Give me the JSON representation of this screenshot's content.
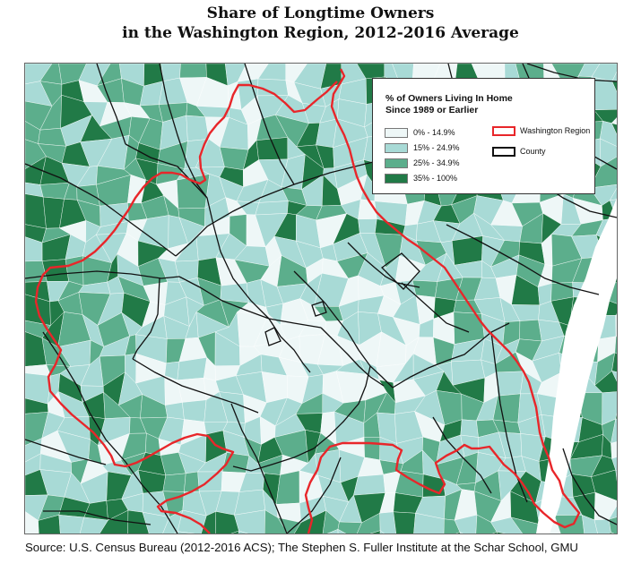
{
  "title": {
    "line1": "Share of Longtime Owners",
    "line2": "in the Washington Region, 2012-2016 Average"
  },
  "legend": {
    "title_line1": "% of Owners Living In Home",
    "title_line2": "Since 1989 or Earlier",
    "classes": [
      {
        "label": "0% - 14.9%",
        "color": "#eef7f7"
      },
      {
        "label": "15% - 24.9%",
        "color": "#a8dad6"
      },
      {
        "label": "25% - 34.9%",
        "color": "#5cae8c"
      },
      {
        "label": "35% - 100%",
        "color": "#217a47"
      }
    ],
    "boundaries": [
      {
        "label": "Washington Region",
        "color": "#e8262a"
      },
      {
        "label": "County",
        "color": "#111111"
      }
    ]
  },
  "colors": {
    "water": "#ffffff",
    "tract_border": "#ffffff",
    "county_border": "#111111",
    "region_border": "#e8262a"
  },
  "source": "Source: U.S. Census Bureau (2012-2016 ACS); The Stephen S. Fuller Institute at the Schar School, GMU"
}
